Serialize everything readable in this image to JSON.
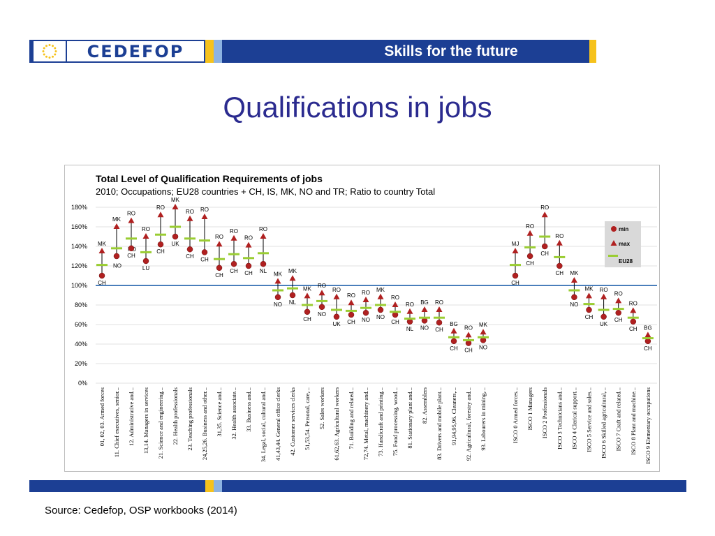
{
  "header": {
    "brand": "CEDEFOP",
    "tagline": "Skills for the future",
    "colors": {
      "bar": "#1c3f94",
      "accent_yellow": "#f6c21c",
      "accent_light": "#8db3e2"
    }
  },
  "page": {
    "title": "Qualifications in jobs"
  },
  "chart_data": {
    "type": "scatter",
    "title": "Total Level of Qualification Requirements of jobs",
    "subtitle": "2010; Occupations; EU28 countries + CH, IS, MK, NO and TR; Ratio to country Total",
    "y_ticks": [
      "0%",
      "20%",
      "40%",
      "60%",
      "80%",
      "100%",
      "120%",
      "140%",
      "160%",
      "180%"
    ],
    "ylim": [
      0,
      180
    ],
    "reference_line": 100,
    "legend": {
      "position": "top-right",
      "entries": [
        "min",
        "max",
        "EU28"
      ]
    },
    "categories": [
      {
        "label": "01, 02, 03. Armed forces",
        "min": 110,
        "max": 135,
        "eu28": 121,
        "min_c": "CH",
        "max_c": "MK",
        "eu_c": "NO"
      },
      {
        "label": "11. Chief executives, senior...",
        "min": 130,
        "max": 160,
        "eu28": 138,
        "min_c": "",
        "max_c": "MK",
        "eu_c": "NO"
      },
      {
        "label": "12. Administrative and...",
        "min": 138,
        "max": 166,
        "eu28": 148,
        "min_c": "CH",
        "max_c": "RO",
        "eu_c": ""
      },
      {
        "label": "13,14. Managers in services",
        "min": 125,
        "max": 150,
        "eu28": 134,
        "min_c": "LU",
        "max_c": "RO",
        "eu_c": ""
      },
      {
        "label": "21. Science and engineering...",
        "min": 142,
        "max": 172,
        "eu28": 152,
        "min_c": "CH",
        "max_c": "RO",
        "eu_c": ""
      },
      {
        "label": "22. Health professionals",
        "min": 150,
        "max": 180,
        "eu28": 160,
        "min_c": "UK",
        "max_c": "MK",
        "eu_c": ""
      },
      {
        "label": "23. Teaching professionals",
        "min": 137,
        "max": 168,
        "eu28": 148,
        "min_c": "CH",
        "max_c": "RO",
        "eu_c": ""
      },
      {
        "label": "24,25,26. Business and other...",
        "min": 134,
        "max": 170,
        "eu28": 146,
        "min_c": "CH",
        "max_c": "RO",
        "eu_c": ""
      },
      {
        "label": "31,35. Science and...",
        "min": 118,
        "max": 142,
        "eu28": 127,
        "min_c": "CH",
        "max_c": "RO",
        "eu_c": ""
      },
      {
        "label": "32. Health associate...",
        "min": 122,
        "max": 148,
        "eu28": 132,
        "min_c": "CH",
        "max_c": "RO",
        "eu_c": ""
      },
      {
        "label": "33. Business and...",
        "min": 120,
        "max": 141,
        "eu28": 128,
        "min_c": "CH",
        "max_c": "RO",
        "eu_c": ""
      },
      {
        "label": "34. Legal, social, cultural and...",
        "min": 122,
        "max": 150,
        "eu28": 133,
        "min_c": "NL",
        "max_c": "RO",
        "eu_c": ""
      },
      {
        "label": "41,43,44. General office clerks",
        "min": 88,
        "max": 104,
        "eu28": 95,
        "min_c": "NO",
        "max_c": "MK",
        "eu_c": ""
      },
      {
        "label": "42. Customer services clerks",
        "min": 90,
        "max": 107,
        "eu28": 97,
        "min_c": "NL",
        "max_c": "MK",
        "eu_c": ""
      },
      {
        "label": "51,53,54. Personal, care,...",
        "min": 73,
        "max": 89,
        "eu28": 80,
        "min_c": "CH",
        "max_c": "MK",
        "eu_c": ""
      },
      {
        "label": "52. Sales workers",
        "min": 78,
        "max": 92,
        "eu28": 84,
        "min_c": "NO",
        "max_c": "RO",
        "eu_c": ""
      },
      {
        "label": "61,62,63. Agricultural workers",
        "min": 68,
        "max": 88,
        "eu28": 75,
        "min_c": "UK",
        "max_c": "RO",
        "eu_c": ""
      },
      {
        "label": "71. Building and related...",
        "min": 70,
        "max": 82,
        "eu28": 74,
        "min_c": "CH",
        "max_c": "RO",
        "eu_c": ""
      },
      {
        "label": "72,74. Metal, machinery and...",
        "min": 72,
        "max": 85,
        "eu28": 77,
        "min_c": "NO",
        "max_c": "RO",
        "eu_c": ""
      },
      {
        "label": "73. Handicraft and printing...",
        "min": 75,
        "max": 88,
        "eu28": 80,
        "min_c": "NO",
        "max_c": "MK",
        "eu_c": ""
      },
      {
        "label": "75. Food processing, wood...",
        "min": 70,
        "max": 80,
        "eu28": 73,
        "min_c": "CH",
        "max_c": "RO",
        "eu_c": ""
      },
      {
        "label": "81. Stationary plant and...",
        "min": 63,
        "max": 73,
        "eu28": 66,
        "min_c": "NL",
        "max_c": "RO",
        "eu_c": ""
      },
      {
        "label": "82. Assemblers",
        "min": 64,
        "max": 75,
        "eu28": 67,
        "min_c": "NO",
        "max_c": "BG",
        "eu_c": ""
      },
      {
        "label": "83. Drivers and mobile plant...",
        "min": 62,
        "max": 75,
        "eu28": 67,
        "min_c": "CH",
        "max_c": "RO",
        "eu_c": ""
      },
      {
        "label": "91,94,95,96. Cleaners,...",
        "min": 43,
        "max": 53,
        "eu28": 47,
        "min_c": "CH",
        "max_c": "BG",
        "eu_c": ""
      },
      {
        "label": "92. Agricultural, forestry and...",
        "min": 41,
        "max": 49,
        "eu28": 44,
        "min_c": "CH",
        "max_c": "RO",
        "eu_c": ""
      },
      {
        "label": "93. Labourers in mining,...",
        "min": 44,
        "max": 52,
        "eu28": 47,
        "min_c": "NO",
        "max_c": "MK",
        "eu_c": ""
      },
      {
        "label": "ISCO 0 Armed forces...",
        "min": 110,
        "max": 135,
        "eu28": 121,
        "min_c": "CH",
        "max_c": "MJ",
        "eu_c": ""
      },
      {
        "label": "ISCO 1 Managers",
        "min": 130,
        "max": 153,
        "eu28": 139,
        "min_c": "CH",
        "max_c": "RO",
        "eu_c": ""
      },
      {
        "label": "ISCO 2 Professionals",
        "min": 140,
        "max": 172,
        "eu28": 150,
        "min_c": "CH",
        "max_c": "RO",
        "eu_c": ""
      },
      {
        "label": "ISCO 3 Technicians and...",
        "min": 120,
        "max": 143,
        "eu28": 129,
        "min_c": "CH",
        "max_c": "RO",
        "eu_c": ""
      },
      {
        "label": "ISCO 4 Clerical support...",
        "min": 88,
        "max": 105,
        "eu28": 95,
        "min_c": "NO",
        "max_c": "MK",
        "eu_c": ""
      },
      {
        "label": "ISCO 5 Service and sales...",
        "min": 75,
        "max": 89,
        "eu28": 81,
        "min_c": "CH",
        "max_c": "MK",
        "eu_c": ""
      },
      {
        "label": "ISCO 6 Skilled agricultural,...",
        "min": 68,
        "max": 88,
        "eu28": 75,
        "min_c": "UK",
        "max_c": "RO",
        "eu_c": ""
      },
      {
        "label": "ISCO 7 Craft and related...",
        "min": 72,
        "max": 84,
        "eu28": 76,
        "min_c": "CH",
        "max_c": "RO",
        "eu_c": ""
      },
      {
        "label": "ISCO 8 Plant and machine...",
        "min": 63,
        "max": 74,
        "eu28": 67,
        "min_c": "CH",
        "max_c": "RO",
        "eu_c": ""
      },
      {
        "label": "ISCO 9 Elementary occupations",
        "min": 43,
        "max": 49,
        "eu28": 46,
        "min_c": "CH",
        "max_c": "BG",
        "eu_c": ""
      }
    ]
  },
  "footer": {
    "source": "Source: Cedefop, OSP workbooks (2014)"
  }
}
